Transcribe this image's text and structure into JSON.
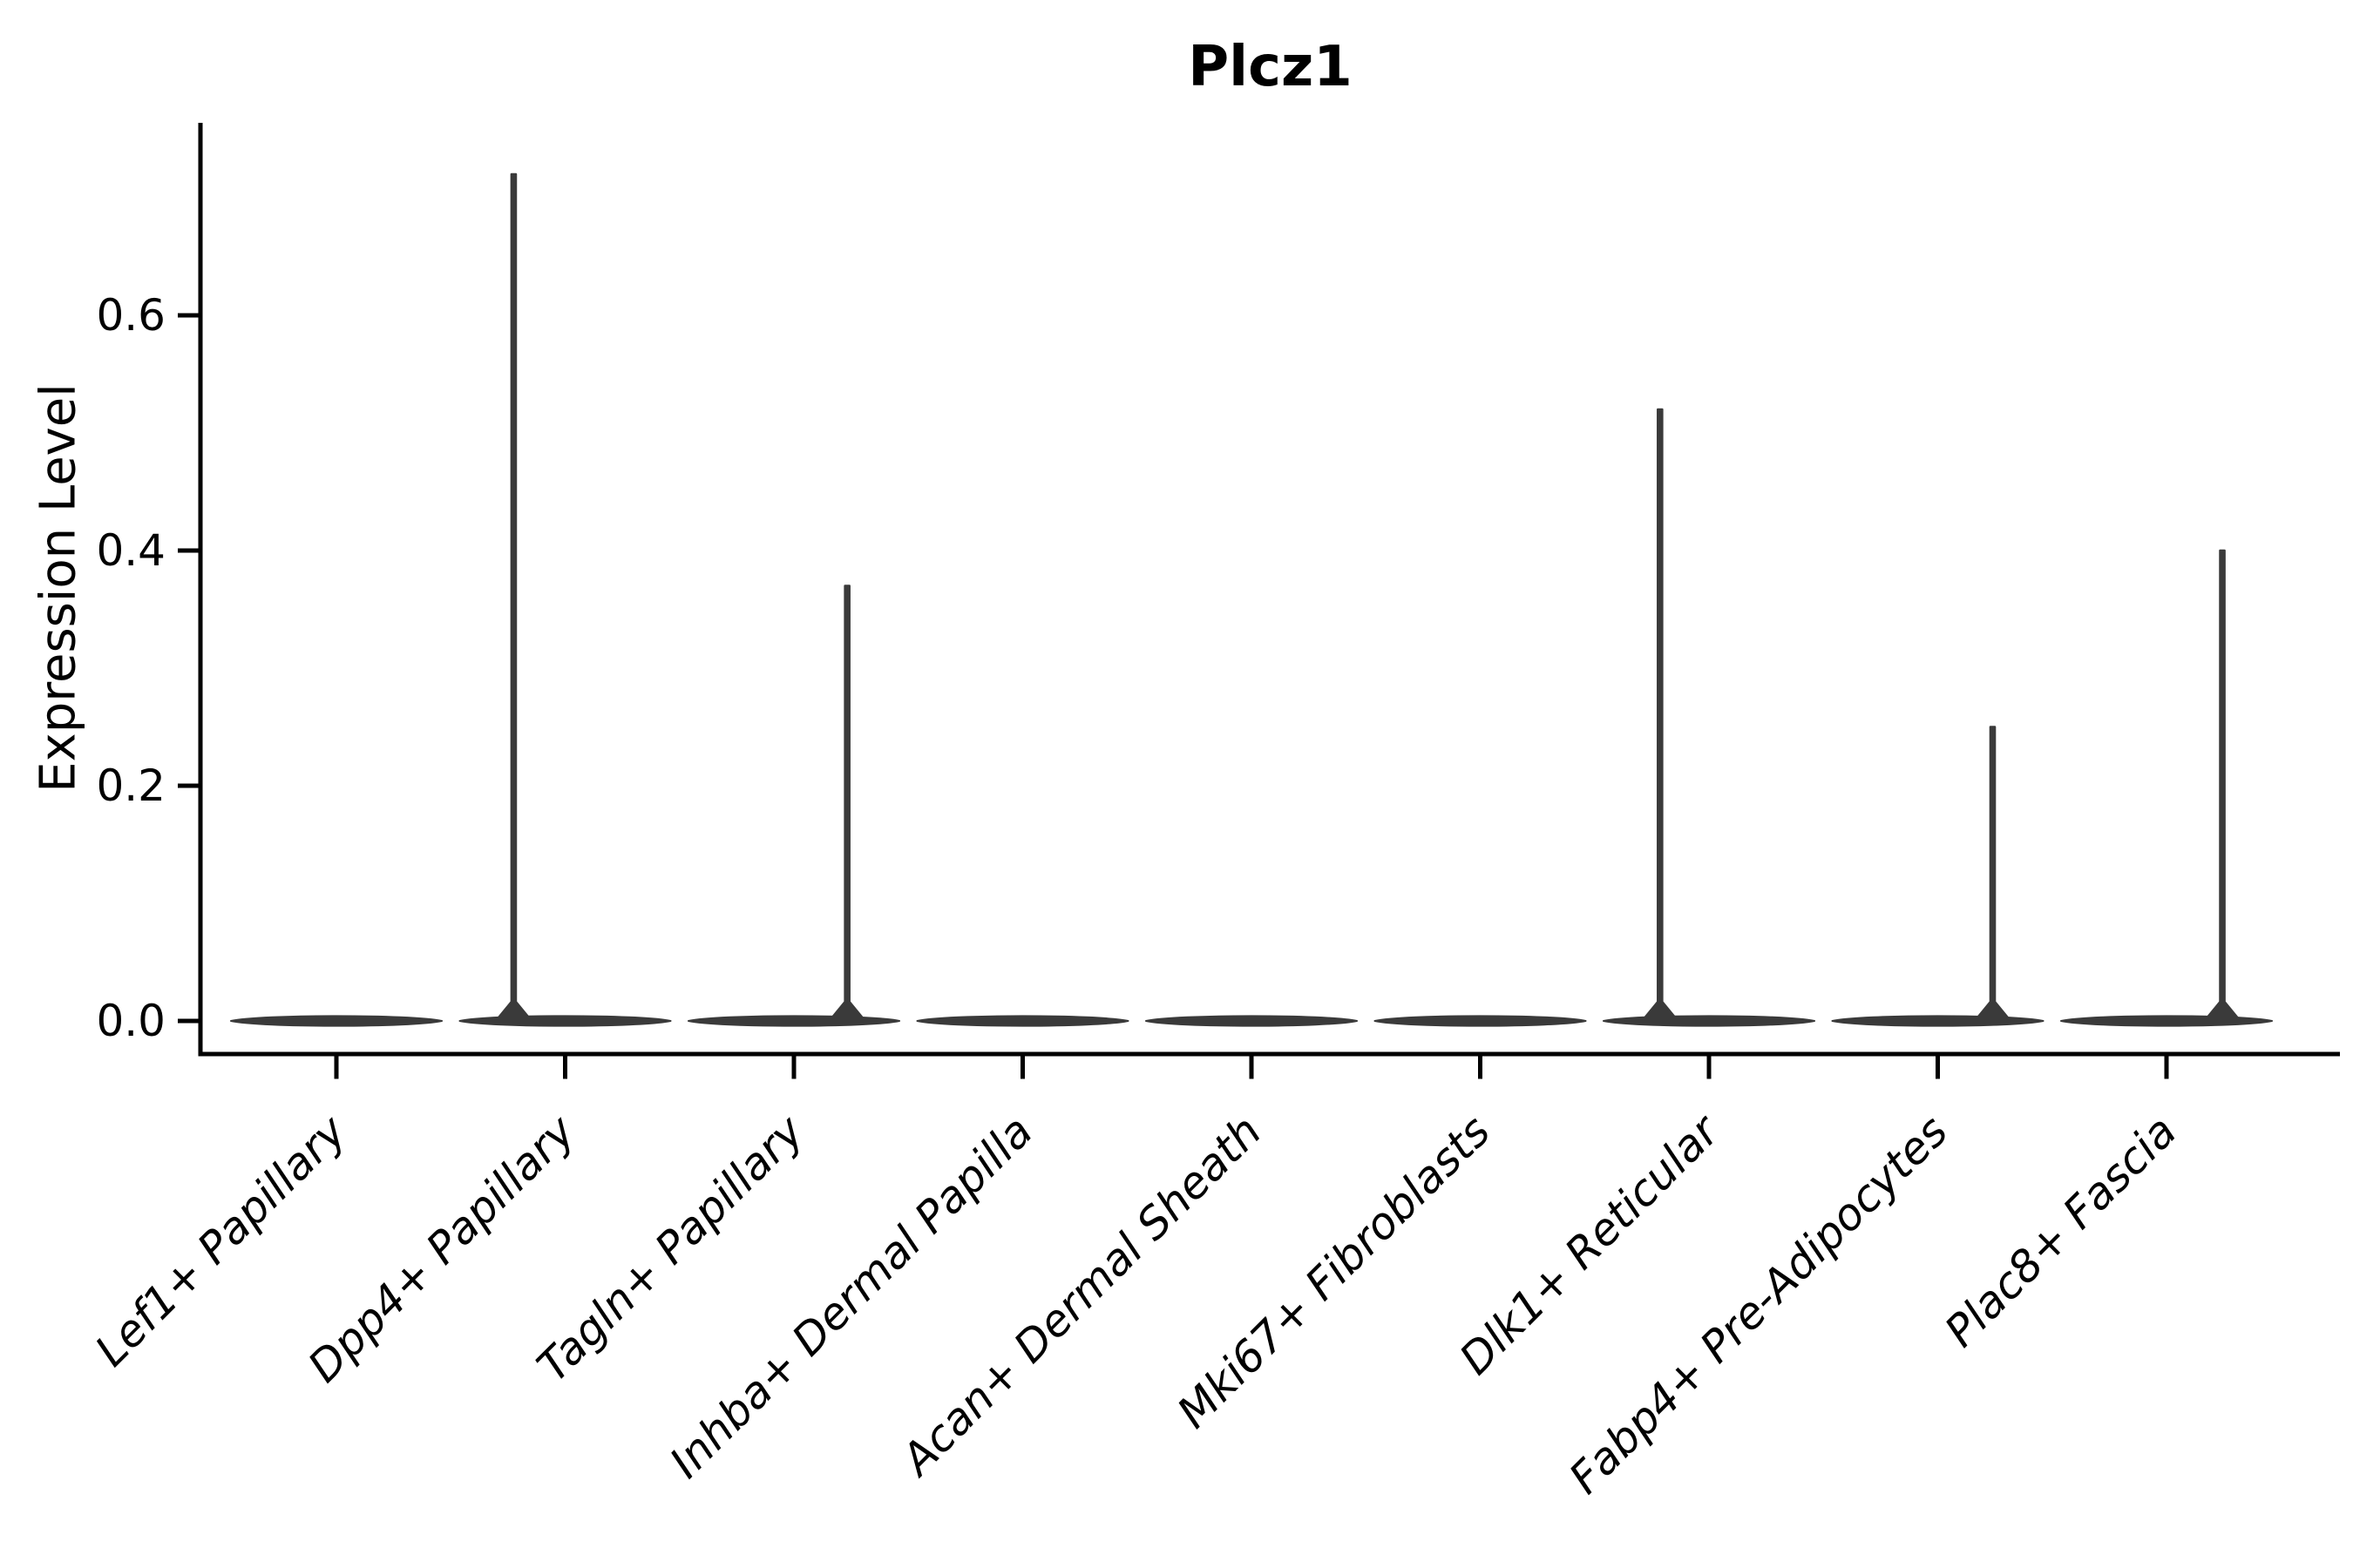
{
  "chart_data": {
    "type": "violin",
    "title": "Plcz1",
    "xlabel": "",
    "ylabel": "Expression Level",
    "ytick_labels": [
      "0.0",
      "0.2",
      "0.4",
      "0.6"
    ],
    "ytick_values": [
      0.0,
      0.2,
      0.4,
      0.6
    ],
    "ylim": [
      -0.028,
      0.764
    ],
    "grid": false,
    "legend": "none",
    "violin_color": "#3a3a3a",
    "axis_color": "#000000",
    "categories": [
      "Lef1+ Papillary",
      "Dpp4+ Papillary",
      "Tagln+ Papillary",
      "Inhba+ Dermal Papilla",
      "Acan+ Dermal Sheath",
      "Mki67+ Fibroblasts",
      "Dlk1+ Reticular",
      "Fabp4+ Pre-Adipocytes",
      "Plac8+ Fascia"
    ],
    "violins": [
      {
        "category": "Lef1+ Papillary",
        "bulk_value": 0.0,
        "max_expression": 0.0,
        "spike": false,
        "spike_offset_frac": 0
      },
      {
        "category": "Dpp4+ Papillary",
        "bulk_value": 0.0,
        "max_expression": 0.72,
        "spike": true,
        "spike_offset_frac": -0.225
      },
      {
        "category": "Tagln+ Papillary",
        "bulk_value": 0.0,
        "max_expression": 0.37,
        "spike": true,
        "spike_offset_frac": 0.233
      },
      {
        "category": "Inhba+ Dermal Papilla",
        "bulk_value": 0.0,
        "max_expression": 0.0,
        "spike": false,
        "spike_offset_frac": 0
      },
      {
        "category": "Acan+ Dermal Sheath",
        "bulk_value": 0.0,
        "max_expression": 0.0,
        "spike": false,
        "spike_offset_frac": 0
      },
      {
        "category": "Mki67+ Fibroblasts",
        "bulk_value": 0.0,
        "max_expression": 0.0,
        "spike": false,
        "spike_offset_frac": 0
      },
      {
        "category": "Dlk1+ Reticular",
        "bulk_value": 0.0,
        "max_expression": 0.52,
        "spike": true,
        "spike_offset_frac": -0.214
      },
      {
        "category": "Fabp4+ Pre-Adipocytes",
        "bulk_value": 0.0,
        "max_expression": 0.25,
        "spike": true,
        "spike_offset_frac": 0.24
      },
      {
        "category": "Plac8+ Fascia",
        "bulk_value": 0.0,
        "max_expression": 0.4,
        "spike": true,
        "spike_offset_frac": 0.244
      }
    ]
  }
}
